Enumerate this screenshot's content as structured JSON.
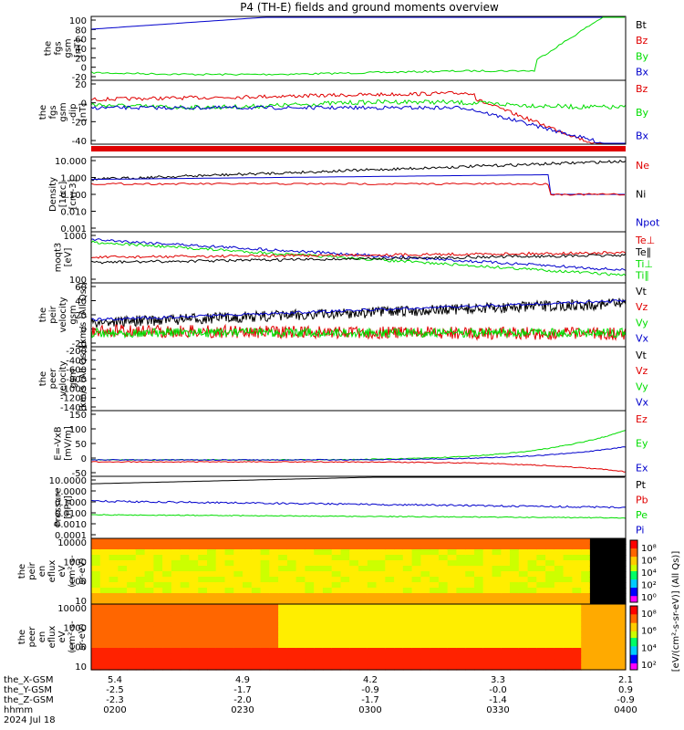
{
  "title": "P4 (TH-E) fields and ground moments overview",
  "colors": {
    "black": "#000000",
    "red": "#e00000",
    "green": "#00dd00",
    "blue": "#0000cc"
  },
  "chart_data": {
    "type": "line",
    "x_ticks": [
      "0200",
      "0230",
      "0300",
      "0330",
      "0400"
    ],
    "x_label_rows": [
      {
        "label": "the_X-GSM",
        "values": [
          "5.4",
          "4.9",
          "4.2",
          "3.3",
          "2.1"
        ]
      },
      {
        "label": "the_Y-GSM",
        "values": [
          "-2.5",
          "-1.7",
          "-0.9",
          "-0.0",
          "0.9"
        ]
      },
      {
        "label": "the_Z-GSM",
        "values": [
          "-2.3",
          "-2.0",
          "-1.7",
          "-1.4",
          "-0.9"
        ]
      },
      {
        "label": "hhmm",
        "values": [
          "0200",
          "0230",
          "0300",
          "0330",
          "0400"
        ]
      }
    ],
    "date_label": "2024 Jul 18",
    "panels": [
      {
        "ylabel": [
          "the",
          "fgs",
          "gsm",
          "[nT]"
        ],
        "ticks": [
          "100",
          "80",
          "60",
          "40",
          "20",
          "0",
          "-20"
        ],
        "legend": [
          {
            "name": "Bt",
            "color": "black"
          },
          {
            "name": "Bz",
            "color": "red"
          },
          {
            "name": "By",
            "color": "green"
          },
          {
            "name": "Bx",
            "color": "blue"
          }
        ]
      },
      {
        "ylabel": [
          "the",
          "fgs",
          "gsm",
          "-dip",
          "[nT]"
        ],
        "ticks": [
          "20",
          "0",
          "-20",
          "-40"
        ],
        "legend": [
          {
            "name": "Bz",
            "color": "red"
          },
          {
            "name": "By",
            "color": "green"
          },
          {
            "name": "Bx",
            "color": "blue"
          }
        ]
      },
      {
        "ylabel": [
          "Density",
          "[1/cc]",
          "[cm-3]"
        ],
        "ticks": [
          "10.000",
          "1.000",
          "0.100",
          "0.010",
          "0.001"
        ],
        "legend": [
          {
            "name": "Ne",
            "color": "red"
          },
          {
            "name": "Ni",
            "color": "black"
          },
          {
            "name": "Npot",
            "color": "blue"
          }
        ]
      },
      {
        "ylabel": [
          "moqt3",
          "[eV]"
        ],
        "ticks": [
          "1000",
          "100"
        ],
        "legend": [
          {
            "name": "Te⊥",
            "color": "red"
          },
          {
            "name": "Te∥",
            "color": "black"
          },
          {
            "name": "Ti⊥",
            "color": "green"
          },
          {
            "name": "Ti∥",
            "color": "green"
          }
        ]
      },
      {
        "ylabel": [
          "the",
          "peir",
          "velocity",
          "gsm",
          "[km/s (All Qs)]"
        ],
        "ticks": [
          "60",
          "40",
          "20",
          "0",
          "-20"
        ],
        "legend": [
          {
            "name": "Vt",
            "color": "black"
          },
          {
            "name": "Vz",
            "color": "red"
          },
          {
            "name": "Vy",
            "color": "green"
          },
          {
            "name": "Vx",
            "color": "blue"
          }
        ]
      },
      {
        "ylabel": [
          "the",
          "peer",
          "velocity",
          "gsm",
          "[km/s (All Qs)]"
        ],
        "ticks": [
          "-200",
          "-400",
          "-600",
          "-800",
          "-1000",
          "-1200",
          "-1400"
        ],
        "legend": [
          {
            "name": "Vt",
            "color": "black"
          },
          {
            "name": "Vz",
            "color": "red"
          },
          {
            "name": "Vy",
            "color": "green"
          },
          {
            "name": "Vx",
            "color": "blue"
          }
        ]
      },
      {
        "ylabel": [
          "E=-VxB",
          "[mV/m]"
        ],
        "ticks": [
          "150",
          "100",
          "50",
          "0",
          "-50"
        ],
        "legend": [
          {
            "name": "Ez",
            "color": "red"
          },
          {
            "name": "Ey",
            "color": "green"
          },
          {
            "name": "Ex",
            "color": "blue"
          }
        ]
      },
      {
        "ylabel": [
          "Pressure",
          "[nPa]"
        ],
        "ticks": [
          "10.0000",
          "1.0000",
          "0.1000",
          "0.0100",
          "0.0010",
          "0.0001"
        ],
        "legend": [
          {
            "name": "Pt",
            "color": "black"
          },
          {
            "name": "Pb",
            "color": "red"
          },
          {
            "name": "Pe",
            "color": "green"
          },
          {
            "name": "Pi",
            "color": "blue"
          }
        ]
      },
      {
        "ylabel": [
          "the",
          "peir",
          "en",
          "eflux",
          "eV",
          "(cm²-s-",
          "sr-eV)"
        ],
        "ticks": [
          "10000",
          "1000",
          "100",
          "10"
        ],
        "spectrogram": true
      },
      {
        "ylabel": [
          "the",
          "peer",
          "en",
          "eflux",
          "eV",
          "(cm²-s-",
          "sr-eV)"
        ],
        "ticks": [
          "10000",
          "1000",
          "100",
          "10"
        ],
        "spectrogram": true
      }
    ],
    "colorbar_ticks_1": [
      "10⁸",
      "10⁶",
      "10⁴",
      "10²",
      "10⁰"
    ],
    "colorbar_ticks_2": [
      "10⁸",
      "10⁶",
      "10⁴",
      "10²"
    ],
    "colorbar_label": "[eV/(cm²-s-sr-eV)] (All Qs)]"
  }
}
